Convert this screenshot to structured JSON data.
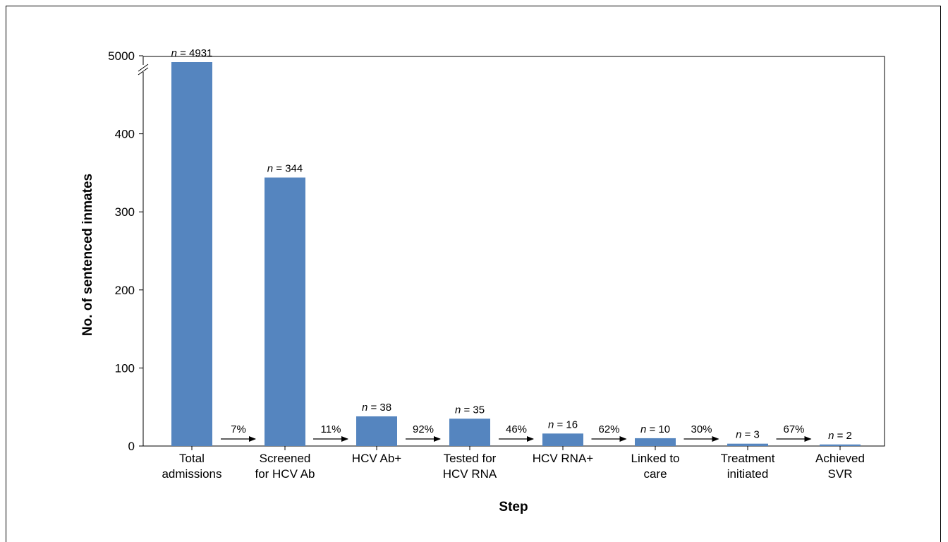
{
  "chart_data": {
    "type": "bar",
    "title": "",
    "xlabel": "Step",
    "ylabel": "No. of sentenced inmates",
    "ylim": [
      0,
      500
    ],
    "y_axis_break": true,
    "yticks": [
      "0",
      "100",
      "200",
      "300",
      "400",
      "5000"
    ],
    "categories": [
      [
        "Total",
        "admissions"
      ],
      [
        "Screened",
        "for HCV Ab"
      ],
      [
        "HCV Ab+"
      ],
      [
        "Tested for",
        "HCV RNA"
      ],
      [
        "HCV RNA+"
      ],
      [
        "Linked to",
        "care"
      ],
      [
        "Treatment",
        "initiated"
      ],
      [
        "Achieved",
        "SVR"
      ]
    ],
    "values": [
      4931,
      344,
      38,
      35,
      16,
      10,
      3,
      2
    ],
    "value_labels": [
      "4931",
      "344",
      "38",
      "35",
      "16",
      "10",
      "3",
      "2"
    ],
    "transition_percentages": [
      "7%",
      "11%",
      "92%",
      "46%",
      "62%",
      "30%",
      "67%"
    ],
    "bar_color": "#5585bf",
    "grid": false,
    "legend": "none"
  }
}
